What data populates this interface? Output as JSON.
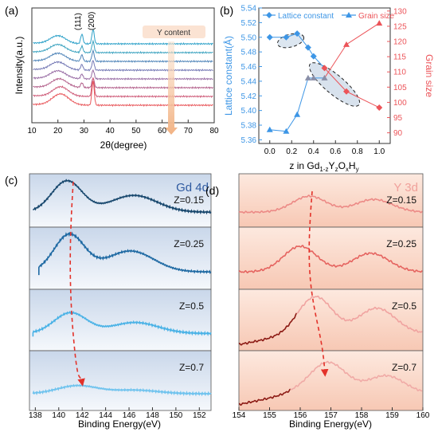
{
  "colors": {
    "lattice": "#3d96e6",
    "grain": "#ec5459",
    "gd_dark": "#17476d",
    "gd_mid": "#1f6aa3",
    "gd_light": "#4ab2e6",
    "y_line": "#ec8a86",
    "y_dark": "#8c1a14",
    "arrow": "#e3322a",
    "ycontent_arrow": "#f6c9a2"
  },
  "chart_data": [
    {
      "panel": "(a)",
      "type": "line",
      "xlabel": "2θ(degree)",
      "ylabel": "Intensity(a.u.)",
      "xlim": [
        10,
        80
      ],
      "xticks": [
        10,
        20,
        30,
        40,
        50,
        60,
        70,
        80
      ],
      "peak_labels": [
        "(111)",
        "(200)"
      ],
      "annotation": "Y content",
      "series": [
        {
          "color": "#2ba0c8",
          "peaks": [
            {
              "x": 20,
              "h": 10,
              "w": 3.0
            },
            {
              "x": 29.2,
              "h": 12,
              "w": 0.45
            },
            {
              "x": 33.5,
              "h": 18,
              "w": 0.45
            }
          ]
        },
        {
          "color": "#3aa2bf",
          "peaks": [
            {
              "x": 20,
              "h": 10,
              "w": 3.0
            },
            {
              "x": 29.2,
              "h": 8,
              "w": 0.45
            },
            {
              "x": 33.5,
              "h": 14,
              "w": 0.45
            }
          ]
        },
        {
          "color": "#4f84b8",
          "peaks": [
            {
              "x": 20,
              "h": 10,
              "w": 3.0
            },
            {
              "x": 29.2,
              "h": 8,
              "w": 0.45
            },
            {
              "x": 33.5,
              "h": 13,
              "w": 0.45
            }
          ]
        },
        {
          "color": "#7377b4",
          "peaks": [
            {
              "x": 20,
              "h": 10,
              "w": 3.0
            },
            {
              "x": 29.2,
              "h": 7,
              "w": 0.45
            },
            {
              "x": 33.5,
              "h": 12,
              "w": 0.45
            }
          ]
        },
        {
          "color": "#986ca4",
          "peaks": [
            {
              "x": 20,
              "h": 10,
              "w": 3.0
            },
            {
              "x": 29.2,
              "h": 6,
              "w": 0.45
            },
            {
              "x": 33.5,
              "h": 11,
              "w": 0.45
            }
          ]
        },
        {
          "color": "#b25f8a",
          "peaks": [
            {
              "x": 20.5,
              "h": 11,
              "w": 3.0
            },
            {
              "x": 29.2,
              "h": 6,
              "w": 0.45
            },
            {
              "x": 33.5,
              "h": 12,
              "w": 0.45
            }
          ]
        },
        {
          "color": "#cd5876",
          "peaks": [
            {
              "x": 21,
              "h": 12,
              "w": 3.0
            },
            {
              "x": 33.5,
              "h": 24,
              "w": 0.45
            }
          ]
        },
        {
          "color": "#e8565a",
          "peaks": [
            {
              "x": 21,
              "h": 14,
              "w": 3.2
            },
            {
              "x": 33.5,
              "h": 30,
              "w": 0.45
            }
          ]
        }
      ]
    },
    {
      "panel": "(b)",
      "type": "line",
      "xlabel_parts": [
        "z in Gd",
        "1-z",
        "Y",
        "z",
        "O",
        "x",
        "H",
        "y"
      ],
      "ylabel": "Lattice constant(Å)",
      "ylabel_right": "Grain size",
      "xlim": [
        -0.1,
        1.1
      ],
      "ylim": [
        5.355,
        5.54
      ],
      "ylim_right": [
        86.5,
        131
      ],
      "xticks": [
        "0.0",
        "0.2",
        "0.4",
        "0.6",
        "0.8",
        "1.0"
      ],
      "yticks": [
        "5.36",
        "5.38",
        "5.40",
        "5.42",
        "5.44",
        "5.46",
        "5.48",
        "5.50",
        "5.52",
        "5.54"
      ],
      "yticks_right": [
        "90",
        "95",
        "100",
        "105",
        "110",
        "115",
        "120",
        "125",
        "130"
      ],
      "legend": [
        "Lattice constant",
        "Grain size"
      ],
      "series": [
        {
          "name": "Lattice constant",
          "axis": "left",
          "x": [
            0,
            0.15,
            0.25,
            0.35,
            0.4,
            0.5,
            0.7,
            1.0
          ],
          "y": [
            5.5,
            5.5,
            5.505,
            5.486,
            5.474,
            5.458,
            5.426,
            5.404
          ]
        },
        {
          "name": "Grain size",
          "axis": "right",
          "x": [
            0,
            0.15,
            0.25,
            0.35,
            0.4,
            0.5,
            0.7,
            1.0
          ],
          "y": [
            91,
            90.5,
            96,
            108,
            108,
            108,
            119,
            126
          ]
        }
      ]
    },
    {
      "panel": "(c)",
      "type": "line",
      "title": "Gd 4d",
      "xlabel": "Binding Energy(eV)",
      "xlim": [
        137.5,
        153
      ],
      "xticks": [
        138,
        140,
        142,
        144,
        146,
        148,
        150,
        152
      ],
      "series": [
        {
          "name": "Z=0.15",
          "color": "#17476d",
          "peaks": [
            {
              "x": 140.7,
              "h": 0.78,
              "w": 1.3
            },
            {
              "x": 146.4,
              "h": 0.42,
              "w": 2.0
            }
          ]
        },
        {
          "name": "Z=0.25",
          "color": "#1f6aa3",
          "peaks": [
            {
              "x": 140.9,
              "h": 0.8,
              "w": 1.3
            },
            {
              "x": 146.1,
              "h": 0.45,
              "w": 2.0
            }
          ]
        },
        {
          "name": "Z=0.5",
          "color": "#4ab2e6",
          "peaks": [
            {
              "x": 141.0,
              "h": 0.45,
              "w": 1.4
            },
            {
              "x": 146.5,
              "h": 0.24,
              "w": 2.0
            }
          ]
        },
        {
          "name": "Z=0.7",
          "color": "#6fc3ee",
          "peaks": [
            {
              "x": 141.6,
              "h": 0.18,
              "w": 1.7
            },
            {
              "x": 146.5,
              "h": 0.08,
              "w": 2.0
            }
          ]
        }
      ]
    },
    {
      "panel": "(d)",
      "type": "line",
      "title": "Y 3d",
      "xlabel": "Binding Energy(eV)",
      "xlim": [
        154,
        160
      ],
      "xticks": [
        154,
        155,
        156,
        157,
        158,
        159,
        160
      ],
      "series": [
        {
          "name": "Z=0.15",
          "color": "#ec8a86",
          "peaks": [
            {
              "x": 156.3,
              "h": 0.4,
              "w": 0.55
            },
            {
              "x": 158.4,
              "h": 0.32,
              "w": 0.6
            }
          ]
        },
        {
          "name": "Z=0.25",
          "color": "#e5635f",
          "peaks": [
            {
              "x": 156.0,
              "h": 0.55,
              "w": 0.55
            },
            {
              "x": 158.3,
              "h": 0.4,
              "w": 0.6
            }
          ]
        },
        {
          "name": "Z=0.5",
          "color": "#f0a3a0",
          "peaks": [
            {
              "x": 156.5,
              "h": 0.8,
              "w": 0.55
            },
            {
              "x": 158.5,
              "h": 0.55,
              "w": 0.6
            }
          ]
        },
        {
          "name": "Z=0.7",
          "color": "#f0aaa6",
          "peaks": [
            {
              "x": 156.9,
              "h": 0.7,
              "w": 0.6
            },
            {
              "x": 158.8,
              "h": 0.4,
              "w": 0.6
            }
          ]
        }
      ]
    }
  ]
}
